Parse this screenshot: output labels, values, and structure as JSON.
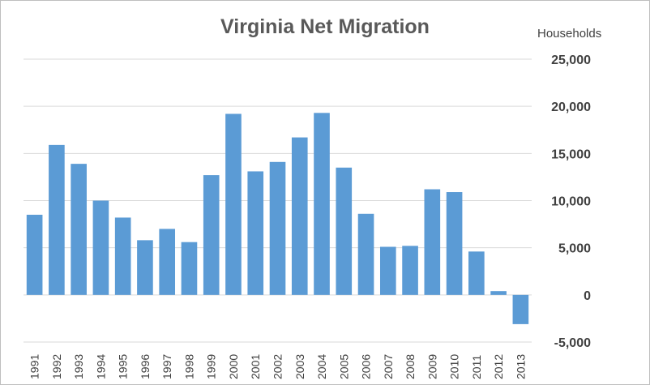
{
  "chart_data": {
    "type": "bar",
    "title": "Virginia Net Migration",
    "ylabel": "Households",
    "xlabel": "",
    "categories": [
      "1991",
      "1992",
      "1993",
      "1994",
      "1995",
      "1996",
      "1997",
      "1998",
      "1999",
      "2000",
      "2001",
      "2002",
      "2003",
      "2004",
      "2005",
      "2006",
      "2007",
      "2008",
      "2009",
      "2010",
      "2011",
      "2012",
      "2013"
    ],
    "values": [
      8500,
      15900,
      13900,
      10000,
      8200,
      5800,
      7000,
      5600,
      12700,
      19200,
      13100,
      14100,
      16700,
      19300,
      13500,
      8600,
      5100,
      5200,
      11200,
      10900,
      4600,
      400,
      -3100
    ],
    "ylim": [
      -5000,
      25000
    ],
    "yticks": [
      25000,
      20000,
      15000,
      10000,
      5000,
      0,
      -5000
    ],
    "ytick_labels": [
      "25,000",
      "20,000",
      "15,000",
      "10,000",
      "5,000",
      "0",
      "-5,000"
    ],
    "grid": true,
    "legend": "none",
    "y_axis_position": "right",
    "bar_color": "#5B9BD5",
    "grid_color": "#d9d9d9"
  }
}
